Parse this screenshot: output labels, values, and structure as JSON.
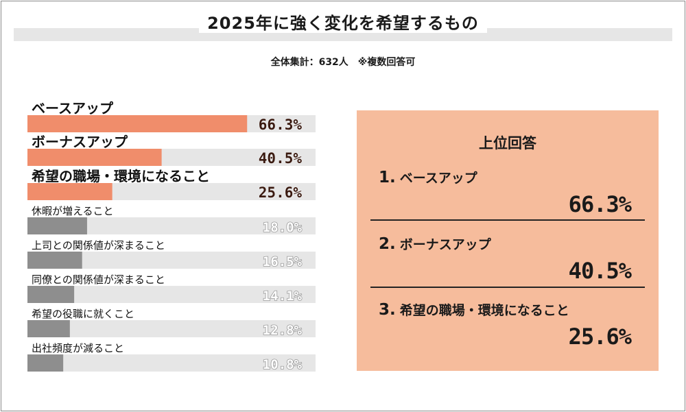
{
  "title": "2025年に強く変化を希望するもの",
  "subtitle": "全体集計：632人　※複数回答可",
  "colors": {
    "highlight": "#f08d6b",
    "rest": "#8e8e8e",
    "track": "#e6e6e6",
    "panel": "#f6bc9c"
  },
  "chart_data": {
    "type": "bar",
    "orientation": "horizontal",
    "xlim": [
      0,
      100
    ],
    "categories": [
      "ベースアップ",
      "ボーナスアップ",
      "希望の職場・環境になること",
      "休暇が増えること",
      "上司との関係値が深まること",
      "同僚との関係値が深まること",
      "希望の役職に就くこと",
      "出社頻度が減ること"
    ],
    "values": [
      66.3,
      40.5,
      25.6,
      18.0,
      16.5,
      14.1,
      12.8,
      10.8
    ],
    "value_labels": [
      "66.3%",
      "40.5%",
      "25.6%",
      "18.0%",
      "16.5%",
      "14.1%",
      "12.8%",
      "10.8%"
    ],
    "highlighted_top": 3
  },
  "panel": {
    "title": "上位回答",
    "items": [
      {
        "rank": "1.",
        "label": "ベースアップ",
        "value": "66.3%"
      },
      {
        "rank": "2.",
        "label": "ボーナスアップ",
        "value": "40.5%"
      },
      {
        "rank": "3.",
        "label": "希望の職場・環境になること",
        "value": "25.6%"
      }
    ]
  }
}
